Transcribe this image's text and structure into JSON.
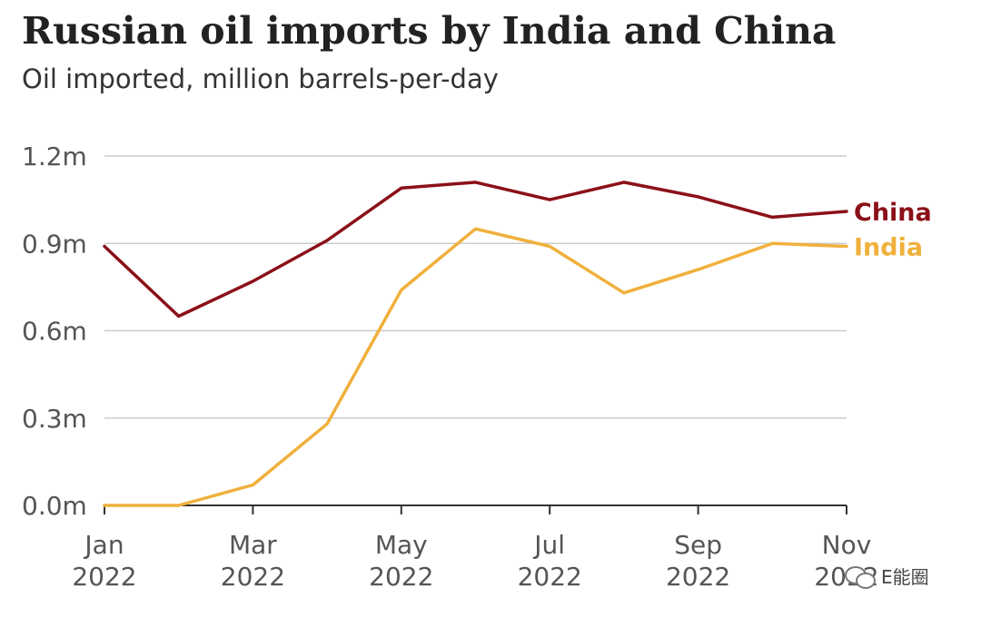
{
  "title": "Russian oil imports by India and China",
  "subtitle": "Oil imported, million barrels-per-day",
  "watermark": {
    "icon": "wechat-icon",
    "text": "E能圈"
  },
  "chart_data": {
    "type": "line",
    "title": "Russian oil imports by India and China",
    "subtitle": "Oil imported, million barrels-per-day",
    "xlabel": "",
    "ylabel": "",
    "x": [
      "Jan 2022",
      "Feb 2022",
      "Mar 2022",
      "Apr 2022",
      "May 2022",
      "Jun 2022",
      "Jul 2022",
      "Aug 2022",
      "Sep 2022",
      "Oct 2022",
      "Nov 2022"
    ],
    "x_tick_labels": [
      {
        "month": "Jan",
        "year": "2022"
      },
      {
        "month": "Mar",
        "year": "2022"
      },
      {
        "month": "May",
        "year": "2022"
      },
      {
        "month": "Jul",
        "year": "2022"
      },
      {
        "month": "Sep",
        "year": "2022"
      },
      {
        "month": "Nov",
        "year": "2022"
      }
    ],
    "x_tick_indices": [
      0,
      2,
      4,
      6,
      8,
      10
    ],
    "y_tick_labels": [
      "0.0m",
      "0.3m",
      "0.6m",
      "0.9m",
      "1.2m"
    ],
    "y_ticks": [
      0,
      0.3,
      0.6,
      0.9,
      1.2
    ],
    "ylim": [
      0,
      1.2
    ],
    "grid": true,
    "legend": "direct labels at line ends",
    "series": [
      {
        "name": "China",
        "color": "#8b1018",
        "values": [
          0.89,
          0.65,
          0.77,
          0.91,
          1.09,
          1.11,
          1.05,
          1.11,
          1.06,
          0.99,
          1.01
        ]
      },
      {
        "name": "India",
        "color": "#f0b03c",
        "values": [
          0.0,
          0.0,
          0.07,
          0.28,
          0.74,
          0.95,
          0.89,
          0.73,
          0.81,
          0.9,
          0.89
        ]
      }
    ]
  }
}
